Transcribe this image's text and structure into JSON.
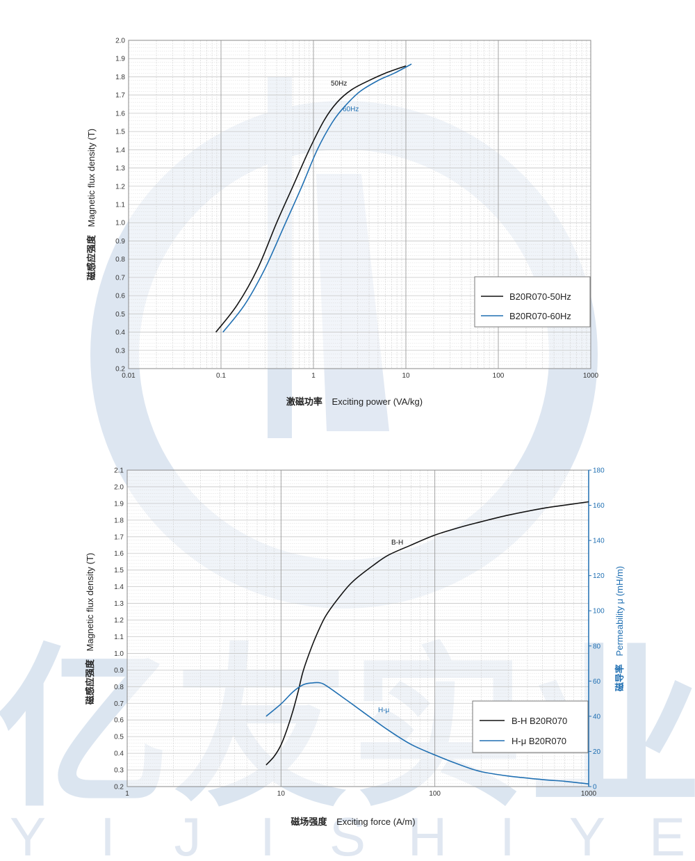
{
  "brand": {
    "chars": [
      "亿",
      "友",
      "实",
      "业"
    ],
    "letters": [
      "Y",
      "I",
      "J",
      "I",
      "S",
      "H",
      "I",
      "Y",
      "E"
    ],
    "color": "#dbe5f0"
  },
  "colors": {
    "black": "#111111",
    "blue": "#1f6fb2",
    "grid": "#cfcfcf"
  },
  "chart_data": [
    {
      "type": "line",
      "x_scale": "log",
      "xlim": [
        0.01,
        1000
      ],
      "ylim": [
        0.2,
        2.0
      ],
      "x_ticks": [
        "0.01",
        "0.1",
        "1",
        "10",
        "100",
        "1000"
      ],
      "y_ticks": [
        "0.2",
        "0.3",
        "0.4",
        "0.5",
        "0.6",
        "0.7",
        "0.8",
        "0.9",
        "1.0",
        "1.1",
        "1.2",
        "1.3",
        "1.4",
        "1.5",
        "1.6",
        "1.7",
        "1.8",
        "1.9",
        "2.0"
      ],
      "ylabel": {
        "cn": "磁感应强度",
        "en": "Magnetic flux density (T)"
      },
      "xlabel": {
        "cn": "激磁功率",
        "en": "Exciting  power (VA/kg)"
      },
      "legend_position": "bottom-right",
      "series": [
        {
          "name": "B20R070-50Hz",
          "color": "#111111",
          "note": "50Hz",
          "x": [
            0.088,
            0.15,
            0.25,
            0.4,
            0.6,
            0.9,
            1.3,
            1.8,
            2.6,
            4.0,
            6.0,
            10.0
          ],
          "y": [
            0.4,
            0.55,
            0.75,
            1.0,
            1.2,
            1.4,
            1.56,
            1.66,
            1.73,
            1.78,
            1.82,
            1.86
          ]
        },
        {
          "name": "B20R070-60Hz",
          "color": "#1f6fb2",
          "note": "60Hz",
          "x": [
            0.105,
            0.18,
            0.3,
            0.5,
            0.75,
            1.1,
            1.6,
            2.2,
            3.2,
            5.0,
            7.5,
            11.5
          ],
          "y": [
            0.4,
            0.55,
            0.75,
            1.0,
            1.2,
            1.4,
            1.55,
            1.64,
            1.72,
            1.78,
            1.82,
            1.87
          ]
        }
      ]
    },
    {
      "type": "line",
      "x_scale": "log",
      "xlim": [
        1,
        1000
      ],
      "ylim": [
        0.2,
        2.1
      ],
      "y2lim": [
        0,
        180
      ],
      "x_ticks": [
        "1",
        "10",
        "100",
        "1000"
      ],
      "y_ticks": [
        "0.2",
        "0.3",
        "0.4",
        "0.5",
        "0.6",
        "0.7",
        "0.8",
        "0.9",
        "1.0",
        "1.1",
        "1.2",
        "1.3",
        "1.4",
        "1.5",
        "1.6",
        "1.7",
        "1.8",
        "1.9",
        "2.0",
        "2.1"
      ],
      "y2_ticks": [
        "0",
        "20",
        "40",
        "60",
        "80",
        "100",
        "120",
        "140",
        "160",
        "180"
      ],
      "ylabel": {
        "cn": "磁感应强度",
        "en": "Magnetic flux density (T)"
      },
      "y2label": {
        "cn": "磁导率",
        "en": "Permeability μ  (mH/m)"
      },
      "xlabel": {
        "cn": "磁场强度",
        "en": "Exciting force (A/m)"
      },
      "legend_position": "bottom-right",
      "series": [
        {
          "name": "B-H B20R070",
          "color": "#111111",
          "note": "B-H",
          "axis": "left",
          "x": [
            8,
            9,
            10,
            11,
            12,
            13,
            14,
            16,
            18,
            20,
            25,
            30,
            40,
            50,
            70,
            100,
            150,
            200,
            300,
            500,
            700,
            1000
          ],
          "y": [
            0.33,
            0.38,
            0.45,
            0.55,
            0.66,
            0.78,
            0.9,
            1.05,
            1.16,
            1.24,
            1.36,
            1.44,
            1.53,
            1.59,
            1.65,
            1.71,
            1.76,
            1.79,
            1.83,
            1.87,
            1.89,
            1.91
          ]
        },
        {
          "name": "H-μ B20R070",
          "color": "#1f6fb2",
          "note": "H-μ",
          "axis": "right",
          "x": [
            8,
            10,
            12,
            14,
            16,
            18,
            20,
            25,
            30,
            40,
            50,
            70,
            100,
            150,
            200,
            300,
            500,
            700,
            1000
          ],
          "y": [
            40,
            47,
            54,
            58,
            59,
            59,
            57,
            51,
            46,
            38,
            32,
            24,
            18,
            12,
            8.5,
            6,
            4,
            3,
            1.5
          ]
        }
      ]
    }
  ]
}
